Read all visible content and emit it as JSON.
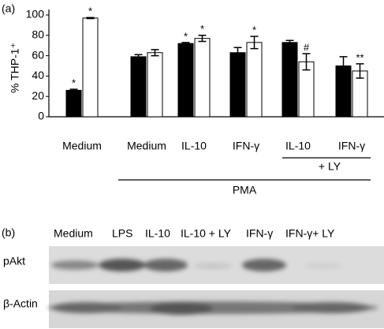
{
  "panel_a": "(a)",
  "chart_data": {
    "type": "bar",
    "ylabel": "% THP-1⁺",
    "categories": [
      "Medium",
      "Medium",
      "IL-10",
      "IFN-γ",
      "IL-10",
      "IFN-γ"
    ],
    "series": [
      {
        "color": "#000000",
        "values": [
          26,
          59,
          72,
          63,
          73,
          50
        ],
        "errors": [
          1,
          2,
          1,
          5,
          2,
          9
        ],
        "significance": [
          "*",
          null,
          "*",
          null,
          null,
          null
        ]
      },
      {
        "color": "#ffffff",
        "values": [
          97,
          63,
          77,
          73,
          54,
          45
        ],
        "errors": [
          0.5,
          3,
          3,
          6,
          8,
          7
        ],
        "significance": [
          "*",
          null,
          "*",
          "*",
          "#",
          "**"
        ]
      }
    ],
    "ylim": [
      0,
      100
    ],
    "yticks": [
      0,
      20,
      40,
      60,
      80,
      100
    ],
    "group_labels": [
      "+ LY",
      "PMA"
    ]
  },
  "blot": {
    "panel": "(b)",
    "lanes": [
      "Medium",
      "LPS",
      "IL-10",
      "IL-10 + LY",
      "IFN-γ",
      "IFN-γ+ LY"
    ],
    "rows": [
      "pAkt",
      "β-Actin"
    ]
  }
}
